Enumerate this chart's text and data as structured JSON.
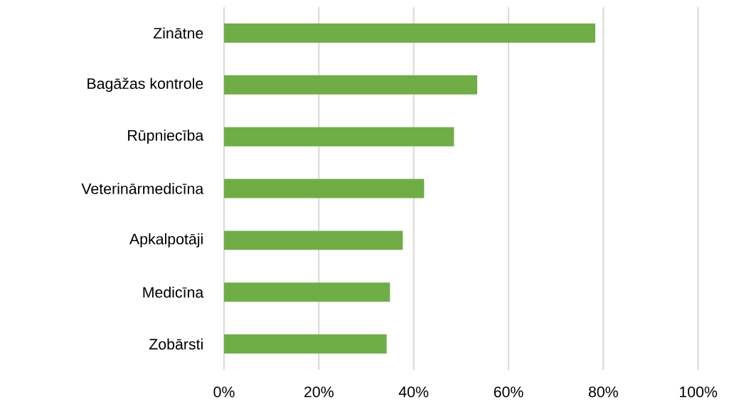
{
  "chart_data": {
    "type": "bar",
    "orientation": "horizontal",
    "categories": [
      "Zinātne",
      "Bagāžas kontrole",
      "Rūpniecība",
      "Veterinārmedicīna",
      "Apkalpotāji",
      "Medicīna",
      "Zobārsti"
    ],
    "values": [
      78.3,
      53.4,
      48.5,
      42.2,
      37.7,
      35.0,
      34.3
    ],
    "color": "#70ad47",
    "xlim": [
      0,
      100
    ],
    "xticks": [
      {
        "value": 0,
        "label": "0%"
      },
      {
        "value": 20,
        "label": "20%"
      },
      {
        "value": 40,
        "label": "40%"
      },
      {
        "value": 60,
        "label": "60%"
      },
      {
        "value": 80,
        "label": "80%"
      },
      {
        "value": 100,
        "label": "100%"
      }
    ],
    "grid": "x"
  }
}
